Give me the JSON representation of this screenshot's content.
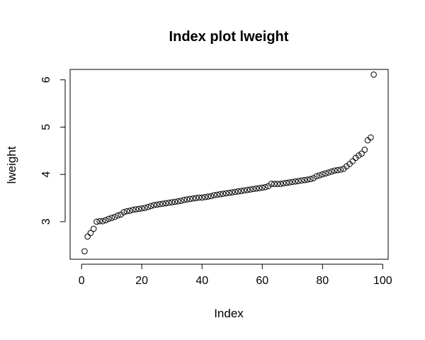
{
  "chart_data": {
    "type": "scatter",
    "title": "Index plot lweight",
    "xlabel": "Index",
    "ylabel": "lweight",
    "xlim": [
      -3.8,
      101.8
    ],
    "ylim": [
      2.205,
      6.22
    ],
    "xticks": [
      0,
      20,
      40,
      60,
      80,
      100
    ],
    "yticks": [
      3,
      4,
      5,
      6
    ],
    "grid": false,
    "legend": "none",
    "x": [
      1,
      2,
      3,
      4,
      5,
      6,
      7,
      8,
      9,
      10,
      11,
      12,
      13,
      14,
      15,
      16,
      17,
      18,
      19,
      20,
      21,
      22,
      23,
      24,
      25,
      26,
      27,
      28,
      29,
      30,
      31,
      32,
      33,
      34,
      35,
      36,
      37,
      38,
      39,
      40,
      41,
      42,
      43,
      44,
      45,
      46,
      47,
      48,
      49,
      50,
      51,
      52,
      53,
      54,
      55,
      56,
      57,
      58,
      59,
      60,
      61,
      62,
      63,
      64,
      65,
      66,
      67,
      68,
      69,
      70,
      71,
      72,
      73,
      74,
      75,
      76,
      77,
      78,
      79,
      80,
      81,
      82,
      83,
      84,
      85,
      86,
      87,
      88,
      89,
      90,
      91,
      92,
      93,
      94,
      95,
      96,
      97
    ],
    "y": [
      2.375,
      2.685,
      2.76,
      2.85,
      3.0,
      3.01,
      3.01,
      3.03,
      3.06,
      3.08,
      3.1,
      3.13,
      3.15,
      3.2,
      3.22,
      3.23,
      3.25,
      3.26,
      3.27,
      3.28,
      3.29,
      3.31,
      3.33,
      3.35,
      3.36,
      3.37,
      3.38,
      3.39,
      3.4,
      3.41,
      3.42,
      3.43,
      3.44,
      3.46,
      3.47,
      3.48,
      3.49,
      3.5,
      3.51,
      3.51,
      3.52,
      3.53,
      3.54,
      3.56,
      3.57,
      3.58,
      3.59,
      3.6,
      3.61,
      3.62,
      3.63,
      3.64,
      3.65,
      3.66,
      3.67,
      3.68,
      3.69,
      3.7,
      3.71,
      3.72,
      3.73,
      3.75,
      3.8,
      3.8,
      3.8,
      3.8,
      3.81,
      3.82,
      3.83,
      3.84,
      3.85,
      3.86,
      3.87,
      3.88,
      3.89,
      3.9,
      3.92,
      3.96,
      3.98,
      4.0,
      4.02,
      4.04,
      4.06,
      4.08,
      4.09,
      4.1,
      4.12,
      4.17,
      4.22,
      4.28,
      4.35,
      4.4,
      4.44,
      4.52,
      4.72,
      4.78,
      6.11
    ]
  }
}
